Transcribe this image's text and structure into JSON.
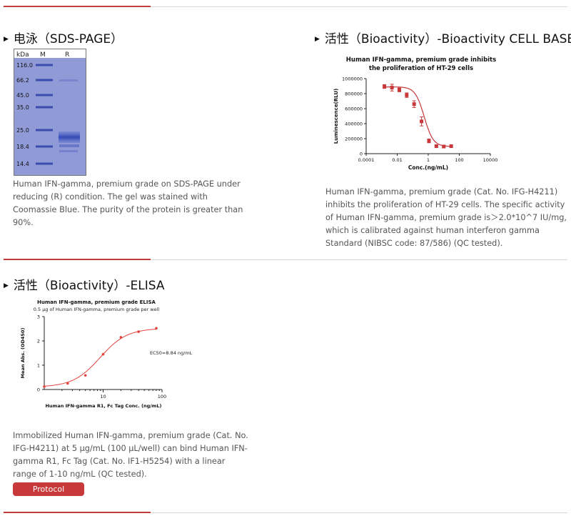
{
  "sections": {
    "sds": {
      "title": "电泳（SDS-PAGE）",
      "gel": {
        "lane_header_unit": "kDa",
        "lane_header_m": "M",
        "lane_header_r": "R",
        "markers": [
          "116.0",
          "66.2",
          "45.0",
          "35.0",
          "25.0",
          "18.4",
          "14.4"
        ]
      },
      "description": "Human IFN-gamma, premium grade on SDS-PAGE under reducing (R) condition. The gel was stained with Coomassie Blue. The purity of the protein is greater than 90%."
    },
    "cell": {
      "title": "活性（Bioactivity）-Bioactivity CELL BASE",
      "description": "Human IFN-gamma, premium grade (Cat. No. IFG-H4211) inhibits the proliferation of HT-29 cells. The specific activity of Human IFN-gamma, premium grade is＞2.0*10^7 IU/mg, which is calibrated against human interferon gamma Standard (NIBSC code: 87/586) (QC tested)."
    },
    "elisa": {
      "title": "活性（Bioactivity）-ELISA",
      "description": "Immobilized Human IFN-gamma, premium grade (Cat. No. IFG-H4211) at 5 μg/mL (100 μL/well) can bind Human IFN-gamma R1, Fc Tag (Cat. No. IF1-H5254) with a linear range of 1-10 ng/mL (QC tested).",
      "protocol_label": "Protocol"
    }
  },
  "chart_data": [
    {
      "type": "scatter",
      "title": "Human IFN-gamma, premium grade inhibits the proliferation of HT-29 cells",
      "title_line1": "Human IFN-gamma, premium grade inhibits",
      "title_line2": "the proliferation of  HT-29 cells",
      "xlabel": "Conc.(ng/mL)",
      "ylabel": "Luminescence(RLU)",
      "x_scale": "log",
      "xlim": [
        0.0001,
        10000
      ],
      "ylim": [
        0,
        1000000
      ],
      "x_ticks": [
        "0.0001",
        "0.01",
        "1",
        "100",
        "10000"
      ],
      "y_ticks": [
        "0",
        "200000",
        "400000",
        "600000",
        "800000",
        "1000000"
      ],
      "color": "#c7393a",
      "series": [
        {
          "x": [
            0.0015,
            0.0046,
            0.0137,
            0.041,
            0.123,
            0.37,
            1.11,
            3.33,
            10,
            30
          ],
          "y": [
            895000,
            880000,
            850000,
            780000,
            660000,
            430000,
            170000,
            100000,
            95000,
            100000
          ],
          "err": [
            25000,
            45000,
            25000,
            30000,
            45000,
            60000,
            25000,
            12000,
            15000,
            18000
          ]
        }
      ]
    },
    {
      "type": "scatter",
      "title": "Human IFN-gamma, premium grade ELISA",
      "subtitle": "0.5 μg of Human IFN-gamma, premium grade  per well",
      "xlabel": "Human IFN-gamma R1, Fc Tag Conc. (ng/mL)",
      "ylabel": "Mean Abs. (OD450)",
      "x_scale": "log",
      "xlim": [
        1,
        100
      ],
      "ylim": [
        0,
        3
      ],
      "x_ticks": [
        "10",
        "100"
      ],
      "y_ticks": [
        "0",
        "1",
        "2",
        "3"
      ],
      "annotation": "EC50=8.84 ng/mL",
      "color": "#e0443e",
      "series": [
        {
          "x": [
            1.0,
            2.5,
            5.0,
            10.0,
            20.0,
            40.0,
            80.0
          ],
          "y": [
            0.12,
            0.25,
            0.58,
            1.45,
            2.15,
            2.38,
            2.52
          ]
        }
      ]
    }
  ]
}
